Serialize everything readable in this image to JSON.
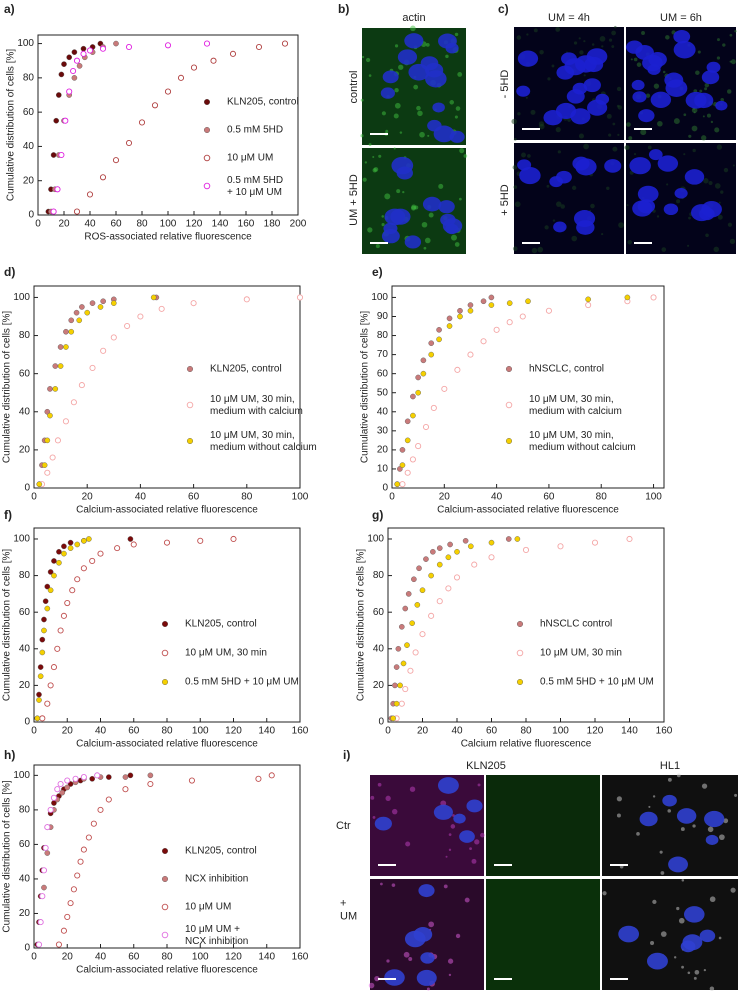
{
  "chart_data": [
    {
      "type": "scatter",
      "panel": "a)",
      "xlabel": "ROS-associated relative fluorescence",
      "ylabel": "Cumulative distribution of cells [%]",
      "xlim": [
        0,
        200
      ],
      "ylim": [
        0,
        105
      ],
      "xticks": [
        0,
        20,
        40,
        60,
        80,
        100,
        120,
        140,
        160,
        180,
        200
      ],
      "yticks": [
        0,
        20,
        40,
        60,
        80,
        100
      ],
      "legend": "center right",
      "series": [
        {
          "name": "KLN205, control",
          "color": "#6a0a0a",
          "marker": "filled",
          "x": [
            8,
            10,
            12,
            14,
            16,
            18,
            20,
            24,
            28,
            35,
            42,
            48
          ],
          "values": [
            2,
            15,
            35,
            55,
            70,
            82,
            88,
            92,
            95,
            97,
            98,
            100
          ]
        },
        {
          "name": "0.5 mM 5HD",
          "color": "#c97a7a",
          "marker": "filled",
          "x": [
            10,
            13,
            16,
            20,
            24,
            28,
            32,
            36,
            42,
            50,
            60
          ],
          "values": [
            2,
            15,
            35,
            55,
            70,
            80,
            87,
            92,
            95,
            98,
            100
          ]
        },
        {
          "name": "10 μM UM",
          "color": "#b04040",
          "marker": "open",
          "x": [
            30,
            40,
            50,
            60,
            70,
            80,
            90,
            100,
            110,
            120,
            135,
            150,
            170,
            190
          ],
          "values": [
            2,
            12,
            22,
            32,
            42,
            54,
            64,
            72,
            80,
            86,
            90,
            94,
            98,
            100
          ]
        },
        {
          "name": "0.5 mM 5HD\n+ 10 μM UM",
          "color": "#e020e0",
          "marker": "open",
          "x": [
            12,
            15,
            18,
            21,
            24,
            27,
            30,
            35,
            40,
            50,
            70,
            100,
            130
          ],
          "values": [
            2,
            15,
            35,
            55,
            72,
            84,
            90,
            94,
            96,
            97,
            98,
            99,
            100
          ]
        }
      ]
    },
    {
      "type": "scatter",
      "panel": "d)",
      "xlabel": "Calcium-associated relative fluorescence",
      "ylabel": "Cumulative distribution of cells [%]",
      "xlim": [
        0,
        100
      ],
      "ylim": [
        0,
        106
      ],
      "xticks": [
        0,
        20,
        40,
        60,
        80,
        100
      ],
      "yticks": [
        0,
        20,
        40,
        60,
        80,
        100
      ],
      "legend": "center right",
      "series": [
        {
          "name": "KLN205, control",
          "color": "#c97a7a",
          "marker": "filled",
          "x": [
            2,
            3,
            4,
            5,
            6,
            8,
            10,
            12,
            14,
            16,
            18,
            22,
            26,
            30,
            46
          ],
          "values": [
            2,
            12,
            25,
            40,
            52,
            64,
            74,
            82,
            88,
            92,
            95,
            97,
            98,
            99,
            100
          ]
        },
        {
          "name": "10 μM UM, 30  min,\nmedium with calcium",
          "color": "#f4a6a6",
          "marker": "open",
          "x": [
            3,
            5,
            7,
            9,
            12,
            15,
            18,
            22,
            26,
            30,
            35,
            40,
            48,
            60,
            80,
            100
          ],
          "values": [
            2,
            8,
            16,
            25,
            35,
            45,
            54,
            63,
            72,
            79,
            85,
            90,
            94,
            97,
            99,
            100
          ]
        },
        {
          "name": "10 μM UM, 30 min,\nmedium without calcium",
          "color": "#f5d000",
          "marker": "filled",
          "x": [
            2,
            4,
            5,
            6,
            8,
            10,
            12,
            14,
            17,
            20,
            25,
            30,
            45
          ],
          "values": [
            2,
            12,
            25,
            38,
            52,
            64,
            74,
            82,
            88,
            92,
            95,
            97,
            100
          ]
        }
      ]
    },
    {
      "type": "scatter",
      "panel": "e)",
      "xlabel": "Calcium-associated relative fluorescence",
      "ylabel": "Cumulative distribution of cells [%]",
      "xlim": [
        0,
        104
      ],
      "ylim": [
        0,
        106
      ],
      "xticks": [
        0,
        20,
        40,
        60,
        80,
        100
      ],
      "yticks": [
        0,
        10,
        20,
        30,
        40,
        50,
        60,
        70,
        80,
        90,
        100
      ],
      "legend": "center right",
      "series": [
        {
          "name": "hNSCLC, control",
          "color": "#c97a7a",
          "marker": "filled",
          "x": [
            2,
            3,
            4,
            6,
            8,
            10,
            12,
            15,
            18,
            22,
            26,
            30,
            35,
            38
          ],
          "values": [
            2,
            10,
            20,
            35,
            48,
            58,
            67,
            76,
            83,
            89,
            93,
            96,
            98,
            100
          ]
        },
        {
          "name": "10 μM UM, 30  min,\nmedium with calcium",
          "color": "#f4a6a6",
          "marker": "open",
          "x": [
            4,
            6,
            8,
            10,
            13,
            16,
            20,
            25,
            30,
            35,
            40,
            45,
            50,
            60,
            75,
            90,
            100
          ],
          "values": [
            2,
            8,
            15,
            22,
            32,
            42,
            52,
            62,
            70,
            77,
            83,
            87,
            90,
            93,
            96,
            98,
            100
          ]
        },
        {
          "name": "10 μM UM, 30 min,\nmedium without calcium",
          "color": "#f5d000",
          "marker": "filled",
          "x": [
            2,
            4,
            6,
            8,
            10,
            12,
            15,
            18,
            22,
            26,
            30,
            38,
            45,
            52,
            75,
            90
          ],
          "values": [
            2,
            12,
            25,
            38,
            50,
            60,
            70,
            78,
            85,
            90,
            93,
            96,
            97,
            98,
            99,
            100
          ]
        }
      ]
    },
    {
      "type": "scatter",
      "panel": "f)",
      "xlabel": "Calcium-associated relative fluorescence",
      "ylabel": "Cumulative distribution of cells [%]",
      "xlim": [
        0,
        160
      ],
      "ylim": [
        0,
        106
      ],
      "xticks": [
        0,
        20,
        40,
        60,
        80,
        100,
        120,
        140,
        160
      ],
      "yticks": [
        0,
        20,
        40,
        60,
        80,
        100
      ],
      "legend": "lower right",
      "series": [
        {
          "name": "KLN205, control",
          "color": "#7a0a0a",
          "marker": "filled",
          "x": [
            2,
            3,
            4,
            5,
            6,
            7,
            8,
            10,
            12,
            15,
            18,
            22,
            30,
            58
          ],
          "values": [
            2,
            15,
            30,
            45,
            56,
            66,
            74,
            82,
            88,
            93,
            96,
            98,
            99,
            100
          ]
        },
        {
          "name": "10 μM UM, 30 min",
          "color": "#c05050",
          "marker": "open",
          "x": [
            5,
            8,
            10,
            12,
            14,
            16,
            18,
            20,
            23,
            26,
            30,
            35,
            40,
            50,
            60,
            80,
            100,
            120
          ],
          "values": [
            2,
            10,
            20,
            30,
            40,
            50,
            58,
            65,
            72,
            78,
            84,
            88,
            92,
            95,
            97,
            98,
            99,
            100
          ]
        },
        {
          "name": "0.5 mM 5HD + 10 μM UM",
          "color": "#f5d000",
          "marker": "filled",
          "x": [
            2,
            3,
            4,
            5,
            6,
            8,
            10,
            12,
            15,
            18,
            22,
            26,
            30,
            33
          ],
          "values": [
            2,
            12,
            25,
            38,
            50,
            62,
            72,
            80,
            87,
            92,
            95,
            97,
            99,
            100
          ]
        }
      ]
    },
    {
      "type": "scatter",
      "panel": "g)",
      "xlabel": "Calcium relative fluorescence",
      "ylabel": "Cumulative distribution of cells [%]",
      "xlim": [
        0,
        160
      ],
      "ylim": [
        0,
        106
      ],
      "xticks": [
        0,
        20,
        40,
        60,
        80,
        100,
        120,
        140,
        160
      ],
      "yticks": [
        0,
        20,
        40,
        60,
        80,
        100
      ],
      "legend": "lower right",
      "series": [
        {
          "name": "hNSCLC control",
          "color": "#c97a7a",
          "marker": "filled",
          "x": [
            2,
            3,
            4,
            5,
            6,
            8,
            10,
            12,
            15,
            18,
            22,
            26,
            30,
            36,
            45,
            70
          ],
          "values": [
            2,
            10,
            20,
            30,
            40,
            52,
            62,
            70,
            78,
            84,
            89,
            93,
            95,
            97,
            99,
            100
          ]
        },
        {
          "name": "10 μM UM, 30 min",
          "color": "#f4a6a6",
          "marker": "open",
          "x": [
            5,
            8,
            10,
            13,
            16,
            20,
            25,
            30,
            35,
            40,
            50,
            60,
            80,
            100,
            120,
            140
          ],
          "values": [
            2,
            10,
            18,
            28,
            38,
            48,
            58,
            66,
            73,
            79,
            86,
            90,
            94,
            96,
            98,
            100
          ]
        },
        {
          "name": "0.5 mM 5HD + 10 μM UM",
          "color": "#f5d000",
          "marker": "filled",
          "x": [
            3,
            5,
            7,
            9,
            11,
            14,
            17,
            20,
            25,
            30,
            35,
            40,
            48,
            60,
            75
          ],
          "values": [
            2,
            10,
            20,
            32,
            42,
            54,
            64,
            72,
            80,
            86,
            90,
            93,
            96,
            98,
            100
          ]
        }
      ]
    },
    {
      "type": "scatter",
      "panel": "h)",
      "xlabel": "Calcium-associated relative fluorescence",
      "ylabel": "Cumulative distribution of cells [%]",
      "xlim": [
        0,
        160
      ],
      "ylim": [
        0,
        106
      ],
      "xticks": [
        0,
        20,
        40,
        60,
        80,
        100,
        120,
        140,
        160
      ],
      "yticks": [
        0,
        20,
        40,
        60,
        80,
        100
      ],
      "legend": "lower right",
      "series": [
        {
          "name": "KLN205, control",
          "color": "#7a0a0a",
          "marker": "filled",
          "x": [
            2,
            3,
            4,
            5,
            6,
            8,
            10,
            12,
            15,
            18,
            22,
            28,
            35,
            45,
            58
          ],
          "values": [
            2,
            15,
            30,
            45,
            58,
            70,
            78,
            84,
            88,
            92,
            95,
            97,
            98,
            99,
            100
          ]
        },
        {
          "name": "NCX inhibition",
          "color": "#c97a7a",
          "marker": "filled",
          "x": [
            3,
            4,
            6,
            8,
            10,
            12,
            14,
            17,
            20,
            25,
            30,
            40,
            55,
            70
          ],
          "values": [
            2,
            15,
            35,
            55,
            70,
            80,
            86,
            90,
            93,
            96,
            98,
            99,
            99,
            100
          ]
        },
        {
          "name": "10 μM UM",
          "color": "#c05050",
          "marker": "open",
          "x": [
            15,
            18,
            20,
            22,
            24,
            26,
            28,
            30,
            33,
            36,
            40,
            45,
            55,
            70,
            95,
            135,
            143
          ],
          "values": [
            2,
            10,
            18,
            26,
            34,
            42,
            50,
            57,
            64,
            72,
            80,
            86,
            92,
            95,
            97,
            98,
            100
          ]
        },
        {
          "name": "10 μM UM +\nNCX inhibition",
          "color": "#e070e0",
          "marker": "open",
          "x": [
            3,
            4,
            5,
            6,
            7,
            8,
            10,
            12,
            14,
            16,
            20,
            25,
            30,
            38
          ],
          "values": [
            2,
            15,
            30,
            45,
            58,
            70,
            80,
            87,
            92,
            95,
            97,
            98,
            99,
            100
          ]
        }
      ]
    }
  ],
  "images": {
    "b": {
      "label": "b)",
      "title": "actin",
      "rows": [
        "control",
        "UM + 5HD"
      ]
    },
    "c": {
      "label": "c)",
      "columns": [
        "UM = 4h",
        "UM = 6h"
      ],
      "rows": [
        "- 5HD",
        "+ 5HD"
      ]
    },
    "i": {
      "label": "i)",
      "columns": [
        "KLN205",
        "HL1"
      ],
      "rows": [
        "Ctr",
        "+\nUM"
      ]
    }
  }
}
